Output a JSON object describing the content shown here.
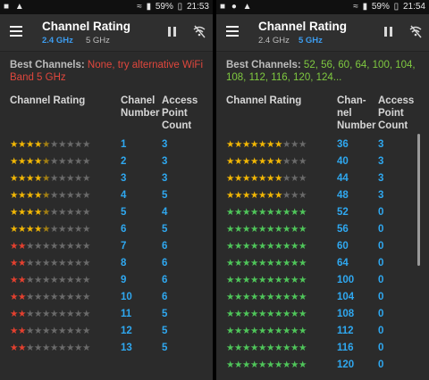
{
  "panels": [
    {
      "status": {
        "battery": "59%",
        "time": "21:53"
      },
      "title": "Channel Rating",
      "band_24": "2.4 GHz",
      "band_5": "5 GHz",
      "selected_band": "2.4",
      "best_label": "Best Channels:",
      "best_value": "None, try alternative WiFi Band 5 GHz",
      "header_rating": "Channel Rating",
      "header_channel": [
        "Chanel",
        "Number"
      ],
      "header_ap": [
        "Access",
        "Point",
        "Count"
      ],
      "rows": [
        {
          "channel": "1",
          "ap": "3",
          "rating": 4.5,
          "color": "gold"
        },
        {
          "channel": "2",
          "ap": "3",
          "rating": 4.5,
          "color": "gold"
        },
        {
          "channel": "3",
          "ap": "3",
          "rating": 4.5,
          "color": "gold"
        },
        {
          "channel": "4",
          "ap": "5",
          "rating": 4.5,
          "color": "gold"
        },
        {
          "channel": "5",
          "ap": "4",
          "rating": 4.5,
          "color": "gold"
        },
        {
          "channel": "6",
          "ap": "5",
          "rating": 4.5,
          "color": "gold"
        },
        {
          "channel": "7",
          "ap": "6",
          "rating": 2,
          "color": "red"
        },
        {
          "channel": "8",
          "ap": "6",
          "rating": 2,
          "color": "red"
        },
        {
          "channel": "9",
          "ap": "6",
          "rating": 2,
          "color": "red"
        },
        {
          "channel": "10",
          "ap": "6",
          "rating": 2,
          "color": "red"
        },
        {
          "channel": "11",
          "ap": "5",
          "rating": 2,
          "color": "red"
        },
        {
          "channel": "12",
          "ap": "5",
          "rating": 2,
          "color": "red"
        },
        {
          "channel": "13",
          "ap": "5",
          "rating": 2,
          "color": "red"
        }
      ]
    },
    {
      "status": {
        "battery": "59%",
        "time": "21:54"
      },
      "title": "Channel Rating",
      "band_24": "2.4 GHz",
      "band_5": "5 GHz",
      "selected_band": "5",
      "best_label": "Best Channels:",
      "best_value": "52, 56, 60, 64, 100, 104, 108, 112, 116, 120, 124...",
      "header_rating": "Channel Rating",
      "header_channel": [
        "Chan-",
        "nel",
        "Number"
      ],
      "header_ap": [
        "Access",
        "Point",
        "Count"
      ],
      "rows": [
        {
          "channel": "36",
          "ap": "3",
          "rating": 7,
          "color": "gold"
        },
        {
          "channel": "40",
          "ap": "3",
          "rating": 7,
          "color": "gold"
        },
        {
          "channel": "44",
          "ap": "3",
          "rating": 7,
          "color": "gold"
        },
        {
          "channel": "48",
          "ap": "3",
          "rating": 7,
          "color": "gold"
        },
        {
          "channel": "52",
          "ap": "0",
          "rating": 10,
          "color": "green"
        },
        {
          "channel": "56",
          "ap": "0",
          "rating": 10,
          "color": "green"
        },
        {
          "channel": "60",
          "ap": "0",
          "rating": 10,
          "color": "green"
        },
        {
          "channel": "64",
          "ap": "0",
          "rating": 10,
          "color": "green"
        },
        {
          "channel": "100",
          "ap": "0",
          "rating": 10,
          "color": "green"
        },
        {
          "channel": "104",
          "ap": "0",
          "rating": 10,
          "color": "green"
        },
        {
          "channel": "108",
          "ap": "0",
          "rating": 10,
          "color": "green"
        },
        {
          "channel": "112",
          "ap": "0",
          "rating": 10,
          "color": "green"
        },
        {
          "channel": "116",
          "ap": "0",
          "rating": 10,
          "color": "green"
        },
        {
          "channel": "120",
          "ap": "0",
          "rating": 10,
          "color": "green"
        }
      ]
    }
  ],
  "colors": {
    "gold": "#f2b705",
    "red": "#e5402f",
    "green": "#4fc65a",
    "empty": "#6a6a6a",
    "accent": "#3d9df0"
  }
}
